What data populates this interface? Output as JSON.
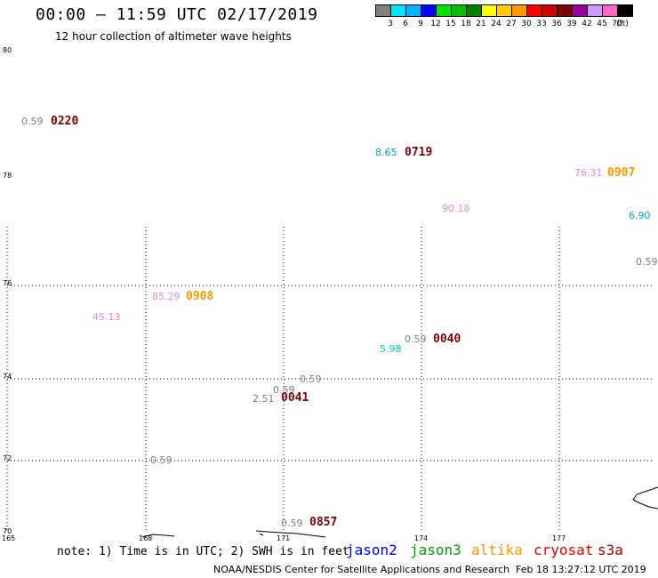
{
  "header": {
    "title": "00:00 — 11:59 UTC 02/17/2019",
    "subtitle": "12 hour collection of altimeter wave heights"
  },
  "legend": {
    "colors": [
      "#808080",
      "#00e5ff",
      "#00b4ff",
      "#0000ff",
      "#00e500",
      "#00c000",
      "#008000",
      "#ffff00",
      "#ffcc00",
      "#ff9900",
      "#ff0000",
      "#cc0000",
      "#800000",
      "#990099",
      "#cc99ff",
      "#ff66cc",
      "#000000"
    ],
    "labels": [
      "3",
      "6",
      "9",
      "12",
      "15",
      "18",
      "21",
      "24",
      "27",
      "30",
      "33",
      "36",
      "39",
      "42",
      "45",
      "70",
      "(ft)"
    ]
  },
  "axes": {
    "lat_ticks": [
      "80",
      "78",
      "76",
      "74",
      "72",
      "70"
    ],
    "lon_ticks": [
      "165",
      "168",
      "171",
      "174",
      "177"
    ]
  },
  "values": [
    {
      "text": "0.59",
      "color": "#808080"
    },
    {
      "text": "8.65",
      "color": "#00aacc"
    },
    {
      "text": "76.31",
      "color": "#ee88dd"
    },
    {
      "text": "90.18",
      "color": "#ee88dd"
    },
    {
      "text": "6.90",
      "color": "#00aacc"
    },
    {
      "text": "0.59",
      "color": "#808080"
    },
    {
      "text": "85.29",
      "color": "#ee88dd"
    },
    {
      "text": "45.13",
      "color": "#ee88dd"
    },
    {
      "text": "0.59",
      "color": "#808080"
    },
    {
      "text": "5.98",
      "color": "#00cccc"
    },
    {
      "text": "0.59",
      "color": "#808080"
    },
    {
      "text": "0.59",
      "color": "#808080"
    },
    {
      "text": "2.51",
      "color": "#808080"
    },
    {
      "text": "0.59",
      "color": "#808080"
    },
    {
      "text": "0.59",
      "color": "#808080"
    }
  ],
  "times": [
    {
      "text": "0220",
      "color": "#800000"
    },
    {
      "text": "0719",
      "color": "#800000"
    },
    {
      "text": "0907",
      "color": "#ff9900"
    },
    {
      "text": "0908",
      "color": "#ff9900"
    },
    {
      "text": "0040",
      "color": "#800000"
    },
    {
      "text": "0041",
      "color": "#800000"
    },
    {
      "text": "0857",
      "color": "#800000"
    }
  ],
  "footer": {
    "note": "note: 1) Time is in UTC; 2) SWH is in feet",
    "satellites": [
      {
        "name": "jason2",
        "color": "#0000ff"
      },
      {
        "name": "jason3",
        "color": "#00a000"
      },
      {
        "name": "altika",
        "color": "#ff9900"
      },
      {
        "name": "cryosat",
        "color": "#ff0000"
      },
      {
        "name": "s3a",
        "color": "#990000"
      }
    ],
    "credit": "NOAA/NESDIS Center for Satellite Applications and Research",
    "timestamp": "Feb 18 13:27:12 UTC 2019"
  }
}
